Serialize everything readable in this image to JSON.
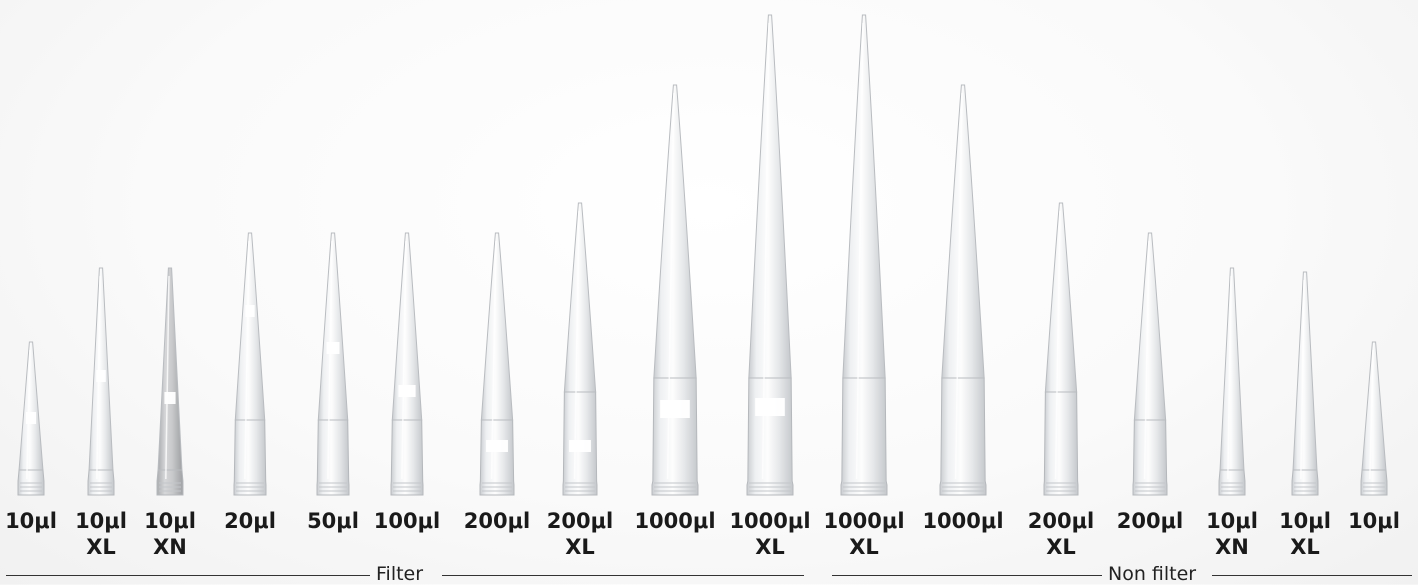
{
  "tips": [
    {
      "size": "10μl",
      "variant": "",
      "top_y": 342,
      "base_w": 26,
      "collar_y": 470,
      "band_y": 412,
      "filter": true,
      "tint": "clear"
    },
    {
      "size": "10μl",
      "variant": "XL",
      "top_y": 268,
      "base_w": 26,
      "collar_y": 470,
      "band_y": 370,
      "filter": true,
      "tint": "clear"
    },
    {
      "size": "10μl",
      "variant": "XN",
      "top_y": 268,
      "base_w": 26,
      "collar_y": 470,
      "band_y": 392,
      "filter": true,
      "tint": "grey"
    },
    {
      "size": "20μl",
      "variant": "",
      "top_y": 233,
      "base_w": 32,
      "collar_y": 420,
      "band_y": 305,
      "filter": true,
      "tint": "clear"
    },
    {
      "size": "50μl",
      "variant": "",
      "top_y": 233,
      "base_w": 32,
      "collar_y": 420,
      "band_y": 342,
      "filter": true,
      "tint": "clear"
    },
    {
      "size": "100μl",
      "variant": "",
      "top_y": 233,
      "base_w": 32,
      "collar_y": 420,
      "band_y": 385,
      "filter": true,
      "tint": "clear"
    },
    {
      "size": "200μl",
      "variant": "",
      "top_y": 233,
      "base_w": 34,
      "collar_y": 420,
      "band_y": 440,
      "filter": true,
      "tint": "clear"
    },
    {
      "size": "200μl",
      "variant": "XL",
      "top_y": 203,
      "base_w": 34,
      "collar_y": 392,
      "band_y": 440,
      "filter": true,
      "tint": "clear"
    },
    {
      "size": "1000μl",
      "variant": "",
      "top_y": 85,
      "base_w": 46,
      "collar_y": 378,
      "band_y": 400,
      "filter": true,
      "tint": "clear"
    },
    {
      "size": "1000μl",
      "variant": "XL",
      "top_y": 15,
      "base_w": 46,
      "collar_y": 378,
      "band_y": 398,
      "filter": true,
      "tint": "clear"
    },
    {
      "size": "1000μl",
      "variant": "XL",
      "top_y": 15,
      "base_w": 46,
      "collar_y": 378,
      "band_y": 0,
      "filter": false,
      "tint": "clear"
    },
    {
      "size": "1000μl",
      "variant": "",
      "top_y": 85,
      "base_w": 46,
      "collar_y": 378,
      "band_y": 0,
      "filter": false,
      "tint": "clear"
    },
    {
      "size": "200μl",
      "variant": "XL",
      "top_y": 203,
      "base_w": 34,
      "collar_y": 392,
      "band_y": 0,
      "filter": false,
      "tint": "clear"
    },
    {
      "size": "200μl",
      "variant": "",
      "top_y": 233,
      "base_w": 34,
      "collar_y": 420,
      "band_y": 0,
      "filter": false,
      "tint": "clear"
    },
    {
      "size": "10μl",
      "variant": "XN",
      "top_y": 268,
      "base_w": 26,
      "collar_y": 470,
      "band_y": 0,
      "filter": false,
      "tint": "clear"
    },
    {
      "size": "10μl",
      "variant": "XL",
      "top_y": 272,
      "base_w": 26,
      "collar_y": 470,
      "band_y": 0,
      "filter": false,
      "tint": "clear"
    },
    {
      "size": "10μl",
      "variant": "",
      "top_y": 342,
      "base_w": 26,
      "collar_y": 470,
      "band_y": 0,
      "filter": false,
      "tint": "clear"
    }
  ],
  "groups": {
    "filter_label": "Filter",
    "nonfilter_label": "Non filter"
  },
  "colors": {
    "plastic_edge": "#b9bcc0",
    "plastic_fill": "#e9eaec",
    "xn_fill": "#cfd0d2",
    "filter_band": "#ffffff",
    "text": "#1a1a1a"
  }
}
